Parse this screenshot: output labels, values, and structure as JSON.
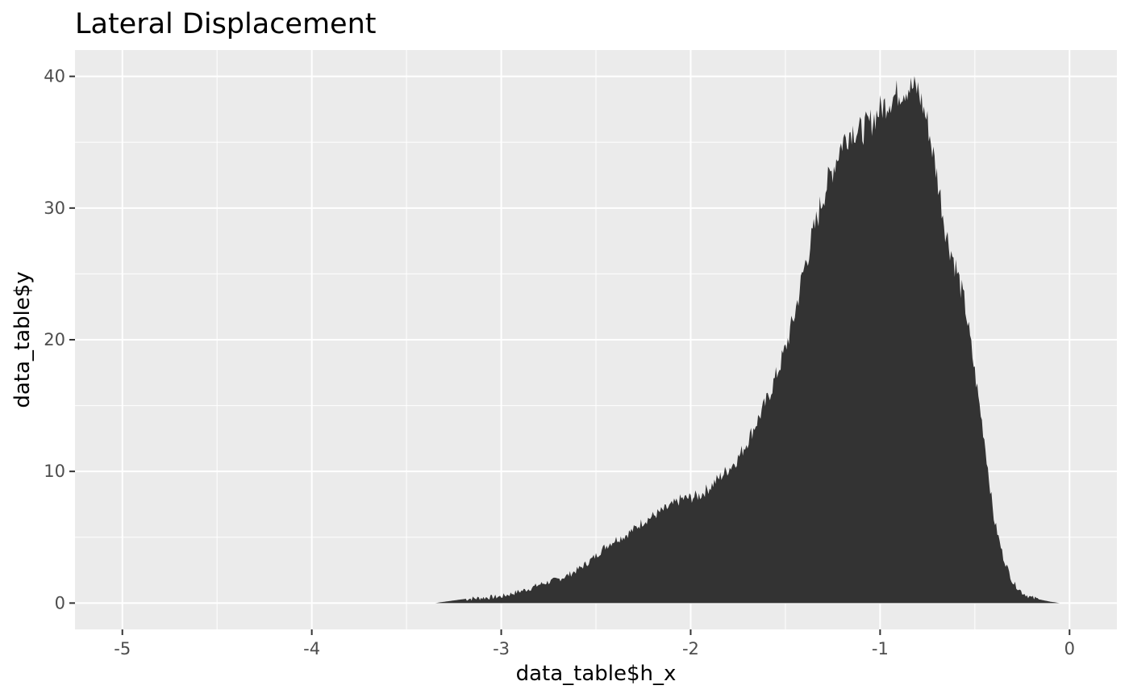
{
  "chart_data": {
    "type": "area",
    "title": "Lateral Displacement",
    "xlabel": "data_table$h_x",
    "ylabel": "data_table$y",
    "xlim": [
      -5.25,
      0.25
    ],
    "ylim": [
      -2,
      42
    ],
    "x_ticks": [
      -5,
      -4,
      -3,
      -2,
      -1,
      0
    ],
    "y_ticks": [
      0,
      10,
      20,
      30,
      40
    ],
    "grid": true,
    "legend": "none",
    "colors": {
      "panel": "#ebebeb",
      "grid": "#ffffff",
      "fill": "#333333",
      "tick": "#333333"
    },
    "series": [
      {
        "x": [
          -3.35,
          -3.3,
          -3.25,
          -3.2,
          -3.15,
          -3.1,
          -3.05,
          -3.0,
          -2.95,
          -2.9,
          -2.85,
          -2.8,
          -2.75,
          -2.7,
          -2.65,
          -2.6,
          -2.55,
          -2.5,
          -2.45,
          -2.4,
          -2.35,
          -2.3,
          -2.25,
          -2.2,
          -2.15,
          -2.1,
          -2.05,
          -2.0,
          -1.95,
          -1.9,
          -1.85,
          -1.8,
          -1.75,
          -1.7,
          -1.65,
          -1.6,
          -1.55,
          -1.5,
          -1.45,
          -1.4,
          -1.35,
          -1.3,
          -1.25,
          -1.2,
          -1.15,
          -1.1,
          -1.05,
          -1.0,
          -0.95,
          -0.9,
          -0.85,
          -0.8,
          -0.75,
          -0.7,
          -0.65,
          -0.6,
          -0.55,
          -0.5,
          -0.45,
          -0.4,
          -0.35,
          -0.3,
          -0.25,
          -0.2,
          -0.15,
          -0.1,
          -0.05
        ],
        "y": [
          0,
          0.1,
          0.2,
          0.3,
          0.35,
          0.4,
          0.45,
          0.5,
          0.7,
          0.9,
          1.1,
          1.4,
          1.6,
          1.8,
          2.1,
          2.5,
          3.0,
          3.6,
          4.3,
          4.8,
          5.1,
          5.6,
          6.2,
          6.6,
          7.0,
          7.4,
          7.9,
          8.0,
          8.2,
          8.8,
          9.5,
          10.2,
          11.0,
          12.3,
          13.8,
          15.3,
          17.2,
          19.3,
          22.0,
          25.5,
          28.2,
          31.0,
          33.0,
          35.0,
          36.0,
          35.8,
          36.5,
          37.5,
          38.2,
          38.8,
          39.2,
          39.0,
          36.5,
          32.5,
          28.0,
          25.5,
          22.5,
          17.5,
          12.5,
          6.5,
          3.5,
          1.6,
          0.8,
          0.4,
          0.25,
          0.1,
          0
        ]
      }
    ]
  }
}
